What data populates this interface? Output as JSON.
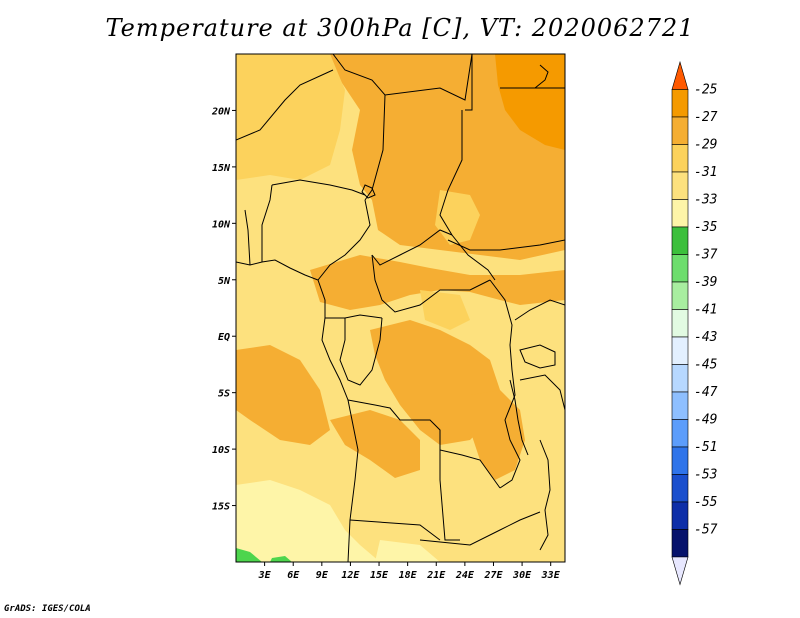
{
  "title": "Temperature at 300hPa [C], VT: 2020062721",
  "credit": "GrADS: IGES/COLA",
  "map": {
    "lat_ticks": [
      {
        "value": 20,
        "label": "20N"
      },
      {
        "value": 15,
        "label": "15N"
      },
      {
        "value": 10,
        "label": "10N"
      },
      {
        "value": 5,
        "label": "5N"
      },
      {
        "value": 0,
        "label": "EQ"
      },
      {
        "value": -5,
        "label": "5S"
      },
      {
        "value": -10,
        "label": "10S"
      },
      {
        "value": -15,
        "label": "15S"
      }
    ],
    "lon_ticks": [
      {
        "value": 3,
        "label": "3E"
      },
      {
        "value": 6,
        "label": "6E"
      },
      {
        "value": 9,
        "label": "9E"
      },
      {
        "value": 12,
        "label": "12E"
      },
      {
        "value": 15,
        "label": "15E"
      },
      {
        "value": 18,
        "label": "18E"
      },
      {
        "value": 21,
        "label": "21E"
      },
      {
        "value": 24,
        "label": "24E"
      },
      {
        "value": 27,
        "label": "27E"
      },
      {
        "value": 30,
        "label": "30E"
      },
      {
        "value": 33,
        "label": "33E"
      }
    ],
    "extent": {
      "lon_min": 0,
      "lon_max": 34.5,
      "lat_min": -20,
      "lat_max": 25
    },
    "colors": {
      "deep_orange": "#f59a00",
      "orange": "#f5ae33",
      "light_orange": "#fcd25c",
      "yellow": "#fde17e",
      "pale_yellow": "#fef5a8",
      "green": "#4dd54d",
      "border": "#000000"
    }
  },
  "colorbar": {
    "labels": [
      "-25",
      "-27",
      "-29",
      "-31",
      "-33",
      "-35",
      "-37",
      "-39",
      "-41",
      "-43",
      "-45",
      "-47",
      "-49",
      "-51",
      "-53",
      "-55",
      "-57"
    ],
    "colors": [
      "#ff5a00",
      "#f59a00",
      "#f5ae33",
      "#fcd25c",
      "#fde17e",
      "#fef5a8",
      "#3cbf3c",
      "#6ddd6d",
      "#a8eea0",
      "#e2fbe2",
      "#e3f0ff",
      "#b7d8ff",
      "#8ebfff",
      "#5c9dfb",
      "#2f74ea",
      "#1a4fcd",
      "#0d2ea8",
      "#06126b",
      "#e8e8ff"
    ]
  }
}
